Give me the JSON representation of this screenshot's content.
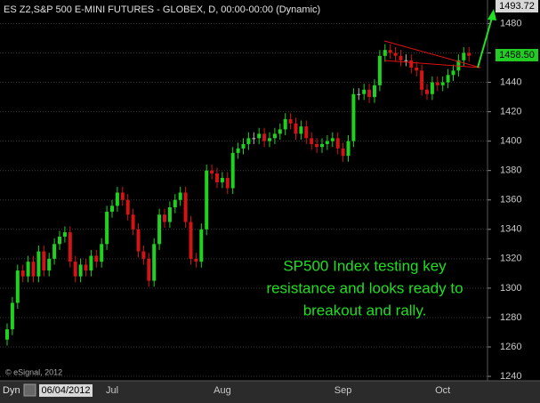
{
  "chart_data": {
    "type": "candlestick",
    "title": "ES Z2,S&P 500 E-MINI FUTURES - GLOBEX, D, 00:00-00:00 (Dynamic)",
    "watermark": "© eSignal, 2012",
    "interval_label": "Dyn",
    "annotation": [
      "SP500 Index  testing key",
      "resistance and looks ready to",
      "breakout and rally."
    ],
    "up_color": "#1ed21e",
    "down_color": "#d21414",
    "doji_color": "#bbbbbb",
    "grid": true,
    "ylim": [
      1237,
      1496
    ],
    "yticks": [
      1240,
      1260,
      1280,
      1300,
      1320,
      1340,
      1360,
      1380,
      1400,
      1420,
      1440,
      1460,
      1480
    ],
    "target_price": 1493.72,
    "last_price": {
      "value": 1458.5,
      "label": "1458.50"
    },
    "categories": [
      "06/04/2012",
      null,
      null,
      null,
      null,
      null,
      null,
      null,
      null,
      null,
      null,
      null,
      null,
      null,
      null,
      null,
      null,
      null,
      null,
      null,
      "Jul",
      null,
      null,
      null,
      null,
      null,
      null,
      null,
      null,
      null,
      null,
      null,
      null,
      null,
      null,
      null,
      null,
      null,
      null,
      null,
      null,
      "Aug",
      null,
      null,
      null,
      null,
      null,
      null,
      null,
      null,
      null,
      null,
      null,
      null,
      null,
      null,
      null,
      null,
      null,
      null,
      null,
      null,
      null,
      null,
      "Sep",
      null,
      null,
      null,
      null,
      null,
      null,
      null,
      null,
      null,
      null,
      null,
      null,
      null,
      null,
      null,
      null,
      null,
      null,
      "Oct",
      null,
      null,
      null,
      null,
      null
    ],
    "open": [
      1265,
      1272,
      1290,
      1312,
      1308,
      1318,
      1308,
      1325,
      1312,
      1320,
      1330,
      1335,
      1338,
      1318,
      1308,
      1316,
      1312,
      1322,
      1318,
      1330,
      1352,
      1356,
      1365,
      1360,
      1350,
      1340,
      1325,
      1320,
      1305,
      1330,
      1350,
      1345,
      1355,
      1360,
      1365,
      1345,
      1320,
      1318,
      1340,
      1380,
      1378,
      1372,
      1375,
      1368,
      1392,
      1395,
      1398,
      1402,
      1402,
      1405,
      1400,
      1402,
      1405,
      1408,
      1415,
      1412,
      1405,
      1410,
      1402,
      1398,
      1396,
      1398,
      1400,
      1402,
      1395,
      1390,
      1400,
      1432,
      1432,
      1435,
      1430,
      1438,
      1458,
      1462,
      1460,
      1458,
      1455,
      1455,
      1450,
      1448,
      1435,
      1432,
      1440,
      1438,
      1440,
      1445,
      1448,
      1455,
      1460
    ],
    "high": [
      1276,
      1294,
      1316,
      1316,
      1322,
      1322,
      1329,
      1329,
      1324,
      1334,
      1339,
      1342,
      1342,
      1322,
      1320,
      1320,
      1326,
      1326,
      1334,
      1356,
      1360,
      1369,
      1369,
      1364,
      1354,
      1344,
      1329,
      1324,
      1334,
      1354,
      1354,
      1359,
      1364,
      1369,
      1369,
      1349,
      1324,
      1344,
      1384,
      1384,
      1382,
      1379,
      1379,
      1396,
      1399,
      1402,
      1406,
      1406,
      1409,
      1409,
      1406,
      1409,
      1412,
      1419,
      1419,
      1416,
      1414,
      1414,
      1406,
      1402,
      1402,
      1404,
      1406,
      1406,
      1399,
      1404,
      1436,
      1436,
      1439,
      1439,
      1442,
      1462,
      1466,
      1466,
      1464,
      1462,
      1459,
      1459,
      1454,
      1452,
      1439,
      1444,
      1444,
      1444,
      1449,
      1452,
      1459,
      1464,
      1464
    ],
    "low": [
      1261,
      1268,
      1286,
      1304,
      1304,
      1304,
      1304,
      1308,
      1308,
      1316,
      1326,
      1331,
      1314,
      1304,
      1304,
      1308,
      1308,
      1314,
      1314,
      1326,
      1348,
      1352,
      1356,
      1346,
      1336,
      1321,
      1316,
      1301,
      1301,
      1326,
      1341,
      1341,
      1351,
      1356,
      1341,
      1316,
      1314,
      1314,
      1336,
      1374,
      1368,
      1368,
      1364,
      1364,
      1388,
      1391,
      1394,
      1398,
      1398,
      1396,
      1396,
      1398,
      1401,
      1404,
      1408,
      1401,
      1401,
      1398,
      1394,
      1392,
      1392,
      1394,
      1396,
      1391,
      1386,
      1386,
      1396,
      1428,
      1428,
      1426,
      1426,
      1434,
      1454,
      1456,
      1454,
      1451,
      1451,
      1446,
      1444,
      1431,
      1428,
      1428,
      1434,
      1434,
      1436,
      1441,
      1444,
      1451,
      1454
    ],
    "close": [
      1272,
      1290,
      1312,
      1308,
      1318,
      1308,
      1325,
      1312,
      1320,
      1330,
      1335,
      1338,
      1318,
      1308,
      1316,
      1312,
      1322,
      1318,
      1330,
      1352,
      1356,
      1365,
      1360,
      1350,
      1340,
      1325,
      1320,
      1305,
      1330,
      1350,
      1345,
      1355,
      1360,
      1365,
      1345,
      1320,
      1318,
      1340,
      1380,
      1378,
      1372,
      1375,
      1368,
      1392,
      1395,
      1398,
      1402,
      1402,
      1405,
      1400,
      1402,
      1405,
      1408,
      1415,
      1412,
      1405,
      1410,
      1402,
      1398,
      1396,
      1398,
      1400,
      1402,
      1395,
      1390,
      1400,
      1432,
      1432,
      1435,
      1430,
      1438,
      1458,
      1462,
      1460,
      1458,
      1455,
      1455,
      1450,
      1448,
      1435,
      1432,
      1440,
      1438,
      1440,
      1445,
      1448,
      1455,
      1460,
      1458
    ]
  }
}
